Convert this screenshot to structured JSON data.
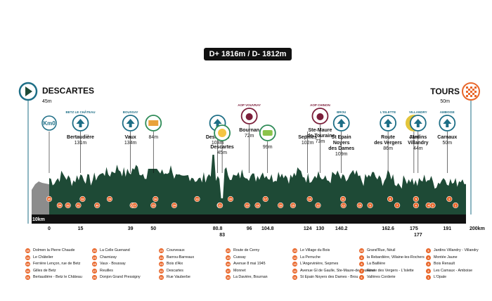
{
  "header": {
    "elevation": "D+ 1816m / D- 1812m"
  },
  "start": {
    "name": "DESCARTES",
    "alt": "45m"
  },
  "finish": {
    "name": "TOURS",
    "alt": "50m"
  },
  "colors": {
    "primary": "#1d6e86",
    "accent": "#e9672b",
    "profile": "#1e4a36",
    "dark": "#111111",
    "start_grey": "#8c8c8c"
  },
  "distance_labels": [
    {
      "text": "10km",
      "km": 0
    },
    {
      "text": "0",
      "km": 0
    },
    {
      "text": "15",
      "km": 15
    },
    {
      "text": "39",
      "km": 39
    },
    {
      "text": "50",
      "km": 50
    },
    {
      "text": "80.8",
      "km": 80.8
    },
    {
      "text": "83",
      "km": 83
    },
    {
      "text": "96",
      "km": 96
    },
    {
      "text": "104.8",
      "km": 104.8
    },
    {
      "text": "124",
      "km": 124
    },
    {
      "text": "130",
      "km": 130
    },
    {
      "text": "140.2",
      "km": 140.2
    },
    {
      "text": "162.6",
      "km": 162.6
    },
    {
      "text": "175",
      "km": 175
    },
    {
      "text": "177",
      "km": 177
    },
    {
      "text": "191",
      "km": 191
    },
    {
      "text": "200km",
      "km": 200
    }
  ],
  "places": [
    {
      "name": "Km0",
      "alt": "",
      "tag": "",
      "type": "km0",
      "km": 0
    },
    {
      "name": "Bertaudière",
      "alt": "131m",
      "tag": "BETZ LE CHÂTEAU",
      "type": "town",
      "km": 15
    },
    {
      "name": "Vaux",
      "alt": "134m",
      "tag": "BOUSSAY",
      "type": "town",
      "km": 39
    },
    {
      "name": "",
      "alt": "84m",
      "tag": "",
      "type": "rainbow",
      "km": 50
    },
    {
      "name": "Descartes",
      "alt": "103m",
      "tag": "",
      "type": "town",
      "km": 80.8
    },
    {
      "name": "Descartes",
      "alt": "45m",
      "tag": "",
      "type": "feed",
      "km": 83
    },
    {
      "name": "Bournan",
      "alt": "72m",
      "tag": "AOP VOUVRAY",
      "type": "wine",
      "km": 96
    },
    {
      "name": "",
      "alt": "99m",
      "tag": "",
      "type": "food",
      "km": 104.8
    },
    {
      "name": "Sepmes",
      "alt": "102m",
      "tag": "",
      "type": "plain",
      "km": 124
    },
    {
      "name": "Ste-Maure\n-de-Touraine",
      "alt": "73m",
      "tag": "AOP CHINON",
      "type": "wine",
      "km": 130
    },
    {
      "name": "St Epain\nNoyers\ndes Dames",
      "alt": "109m",
      "tag": "BROU",
      "type": "town",
      "km": 140.2
    },
    {
      "name": "Route\ndes Vergers",
      "alt": "86m",
      "tag": "L'ISLETTE",
      "type": "town",
      "km": 162.6
    },
    {
      "name": "",
      "alt": "41m",
      "tag": "",
      "type": "cobbles",
      "km": 175
    },
    {
      "name": "Jardins\nVillandry",
      "alt": "44m",
      "tag": "VILLANDRY",
      "type": "town",
      "km": 177
    },
    {
      "name": "Carnaux",
      "alt": "50m",
      "tag": "AMBOISE",
      "type": "town",
      "km": 191
    }
  ],
  "markers": [
    {
      "n": "35",
      "km": 1
    },
    {
      "n": "34",
      "km": 4
    },
    {
      "n": "33",
      "km": 10
    },
    {
      "n": "32",
      "km": 15
    },
    {
      "n": "31",
      "km": 15
    },
    {
      "n": "30",
      "km": 22
    },
    {
      "n": "29",
      "km": 30
    },
    {
      "n": "28",
      "km": 39
    },
    {
      "n": "27",
      "km": 42
    },
    {
      "n": "26",
      "km": 50
    },
    {
      "n": "25",
      "km": 51
    },
    {
      "n": "24",
      "km": 59
    },
    {
      "n": "23",
      "km": 72
    },
    {
      "n": "22",
      "km": 80.8
    },
    {
      "n": "21",
      "km": 83
    },
    {
      "n": "20",
      "km": 86
    },
    {
      "n": "19",
      "km": 96
    },
    {
      "n": "18",
      "km": 99
    },
    {
      "n": "17",
      "km": 104.8
    },
    {
      "n": "16",
      "km": 110
    },
    {
      "n": "15",
      "km": 118
    },
    {
      "n": "14",
      "km": 124
    },
    {
      "n": "13",
      "km": 130
    },
    {
      "n": "12",
      "km": 140.2
    },
    {
      "n": "11",
      "km": 142
    },
    {
      "n": "10",
      "km": 148
    },
    {
      "n": "9",
      "km": 155
    },
    {
      "n": "8",
      "km": 162.6
    },
    {
      "n": "7",
      "km": 168
    },
    {
      "n": "6",
      "km": 175
    },
    {
      "n": "5",
      "km": 177
    },
    {
      "n": "4",
      "km": 181
    },
    {
      "n": "3",
      "km": 185
    },
    {
      "n": "2",
      "km": 191
    },
    {
      "n": "1",
      "km": 196
    }
  ],
  "legend": [
    [
      {
        "n": "35",
        "text": "Dolmen la Pierre Chaude"
      },
      {
        "n": "34",
        "text": "Le Châtelier"
      },
      {
        "n": "33",
        "text": "Ferrière Lençon, rue de Betz"
      },
      {
        "n": "32",
        "text": "Gilles de Betz"
      },
      {
        "n": "31",
        "text": "Bertaudière - Betz le Château"
      }
    ],
    [
      {
        "n": "30",
        "text": "La Celle Guenand"
      },
      {
        "n": "29",
        "text": "Charnizay"
      },
      {
        "n": "28",
        "text": "Vaux - Boussay"
      },
      {
        "n": "27",
        "text": "Reuilles"
      },
      {
        "n": "26",
        "text": "Donjon Grand Pressigny"
      }
    ],
    [
      {
        "n": "25",
        "text": "Courveaux"
      },
      {
        "n": "24",
        "text": "Barrou-Barreaux"
      },
      {
        "n": "23",
        "text": "Bois d'Aix"
      },
      {
        "n": "22",
        "text": "Descartes"
      },
      {
        "n": "21",
        "text": "Rue Vauberbe"
      }
    ],
    [
      {
        "n": "20",
        "text": "Route de Cerny"
      },
      {
        "n": "19",
        "text": "Cussay"
      },
      {
        "n": "18",
        "text": "Avenue 8 mai 1945"
      },
      {
        "n": "17",
        "text": "Monnet"
      },
      {
        "n": "16",
        "text": "La Davière, Bournan"
      }
    ],
    [
      {
        "n": "15",
        "text": "Le Village du Bois"
      },
      {
        "n": "14",
        "text": "La Perruche"
      },
      {
        "n": "13",
        "text": "L'Angevinière, Sepmes"
      },
      {
        "n": "12",
        "text": "Avenue Gl de Gaulle, Ste-Maure-de-Touraine"
      },
      {
        "n": "11",
        "text": "St Epain Noyers des Dames - Brou"
      }
    ],
    [
      {
        "n": "10",
        "text": "Grand'Rue, Néuil"
      },
      {
        "n": "9",
        "text": "la Rebardière, Villaine-les-Rochers"
      },
      {
        "n": "8",
        "text": "La Baillière"
      },
      {
        "n": "7",
        "text": "Route des Vergers - L'Islette"
      },
      {
        "n": "6",
        "text": "Vallères Corderie"
      }
    ],
    [
      {
        "n": "5",
        "text": "Jardins Villandry - Villandry"
      },
      {
        "n": "4",
        "text": "Montée Jaune"
      },
      {
        "n": "3",
        "text": "Bois Renault"
      },
      {
        "n": "2",
        "text": "Les Carnaux - Amboise"
      },
      {
        "n": "1",
        "text": "L'Opale"
      }
    ]
  ]
}
